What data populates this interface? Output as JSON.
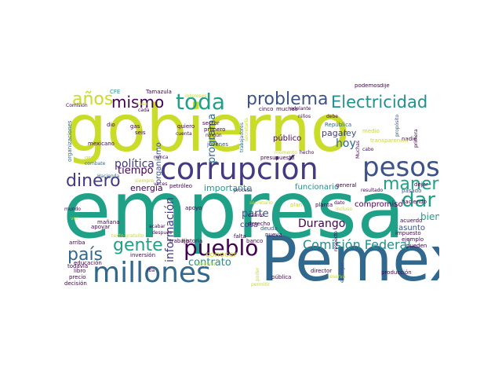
{
  "palette": {
    "lime": "#c8dc28",
    "teal": "#1fa187",
    "blue": "#31688e",
    "indigo": "#443983",
    "purple": "#440154",
    "green": "#5ec962",
    "cyan": "#21908d",
    "slate": "#3b528b"
  },
  "words": {
    "w1": "empresa",
    "w2": "gobierno",
    "w3": "Pemex",
    "w4": "corrupción",
    "w5": "millones",
    "w6": "pesos",
    "w7": "pueblo",
    "w8": "toda",
    "w9": "problema",
    "w10": "Electricidad",
    "w11": "mismo",
    "w12": "años",
    "w13": "manera",
    "w14": "dar",
    "w15": "dinero",
    "w16": "gente",
    "w17": "país",
    "w18": "Comisión Federal",
    "w19": "política",
    "w20": "tiempo",
    "w21": "programa",
    "w22": "hoy",
    "w23": "Durango",
    "w24": "bien",
    "w25": "parte",
    "w26": "contrato",
    "w27": "información",
    "w28": "organismo",
    "w29": "energía",
    "w30": "importante",
    "w31": "funcionario",
    "w32": "compromiso",
    "w33": "asunto",
    "w34": "pagar",
    "w35": "ley",
    "w36": "público",
    "w37": "conocer",
    "w38": "sector",
    "w39": "República",
    "w40": "jóvenes",
    "w41": "cosa",
    "w42": "derecho",
    "w43": "deuda",
    "w44": "plan",
    "w45": "haciendo",
    "w46": "pasado",
    "w47": "acuerdo",
    "w48": "impuesto",
    "w49": "ejemplo",
    "w50": "pueden",
    "w51": "dejar",
    "w52": "resultado",
    "w53": "general",
    "w54": "proceso",
    "w55": "petróleo",
    "w56": "siempre",
    "w57": "Hacienda",
    "w58": "gran",
    "w59": "combate",
    "w60": "mexicano",
    "w61": "seis",
    "w62": "gas",
    "w63": "dio",
    "w64": "CFE",
    "w65": "Tamazula",
    "w66": "Comisión",
    "w67": "organizaciones",
    "w68": "casa",
    "w69": "cada",
    "w70": "quiero",
    "w71": "cuenta",
    "w72": "primero",
    "w73": "ningún",
    "w74": "secretaría",
    "w75": "muchas",
    "w76": "cinco",
    "w77": "adelante",
    "w78": "niños",
    "w79": "intereses",
    "w80": "podemos",
    "w81": "dije",
    "w82": "propósito",
    "w83": "nadie",
    "w84": "primera",
    "w85": "medio",
    "w86": "Muchas",
    "w87": "cabo",
    "w88": "debe",
    "w89": "hecho",
    "w90": "presupuesto",
    "w91": "momento",
    "w92": "trabajadores",
    "w93": "mundo",
    "w94": "educación",
    "w95": "libro",
    "w96": "todavía",
    "w97": "precio",
    "w98": "decisión",
    "w99": "arriba",
    "w100": "mañana",
    "w101": "apoyar",
    "w102": "ver",
    "w103": "después",
    "w104": "acabar",
    "w105": "inversión",
    "w106": "iba",
    "w107": "trabajo",
    "w108": "historia",
    "w109": "apoyo",
    "w110": "falta",
    "w111": "cuánto",
    "w112": "nueva",
    "w113": "banco",
    "w114": "poder",
    "w115": "pública",
    "w116": "director",
    "w117": "entregar",
    "w118": "producción",
    "w119": "planta",
    "w120": "respecto",
    "w121": "dato",
    "w122": "incluso",
    "w123": "reserva",
    "w124": "transparencia",
    "w125": "permitir",
    "w126": "secretario",
    "w127": "texto gratuito",
    "w128": "nunca",
    "w129": "veces",
    "w130": "ninguna"
  }
}
